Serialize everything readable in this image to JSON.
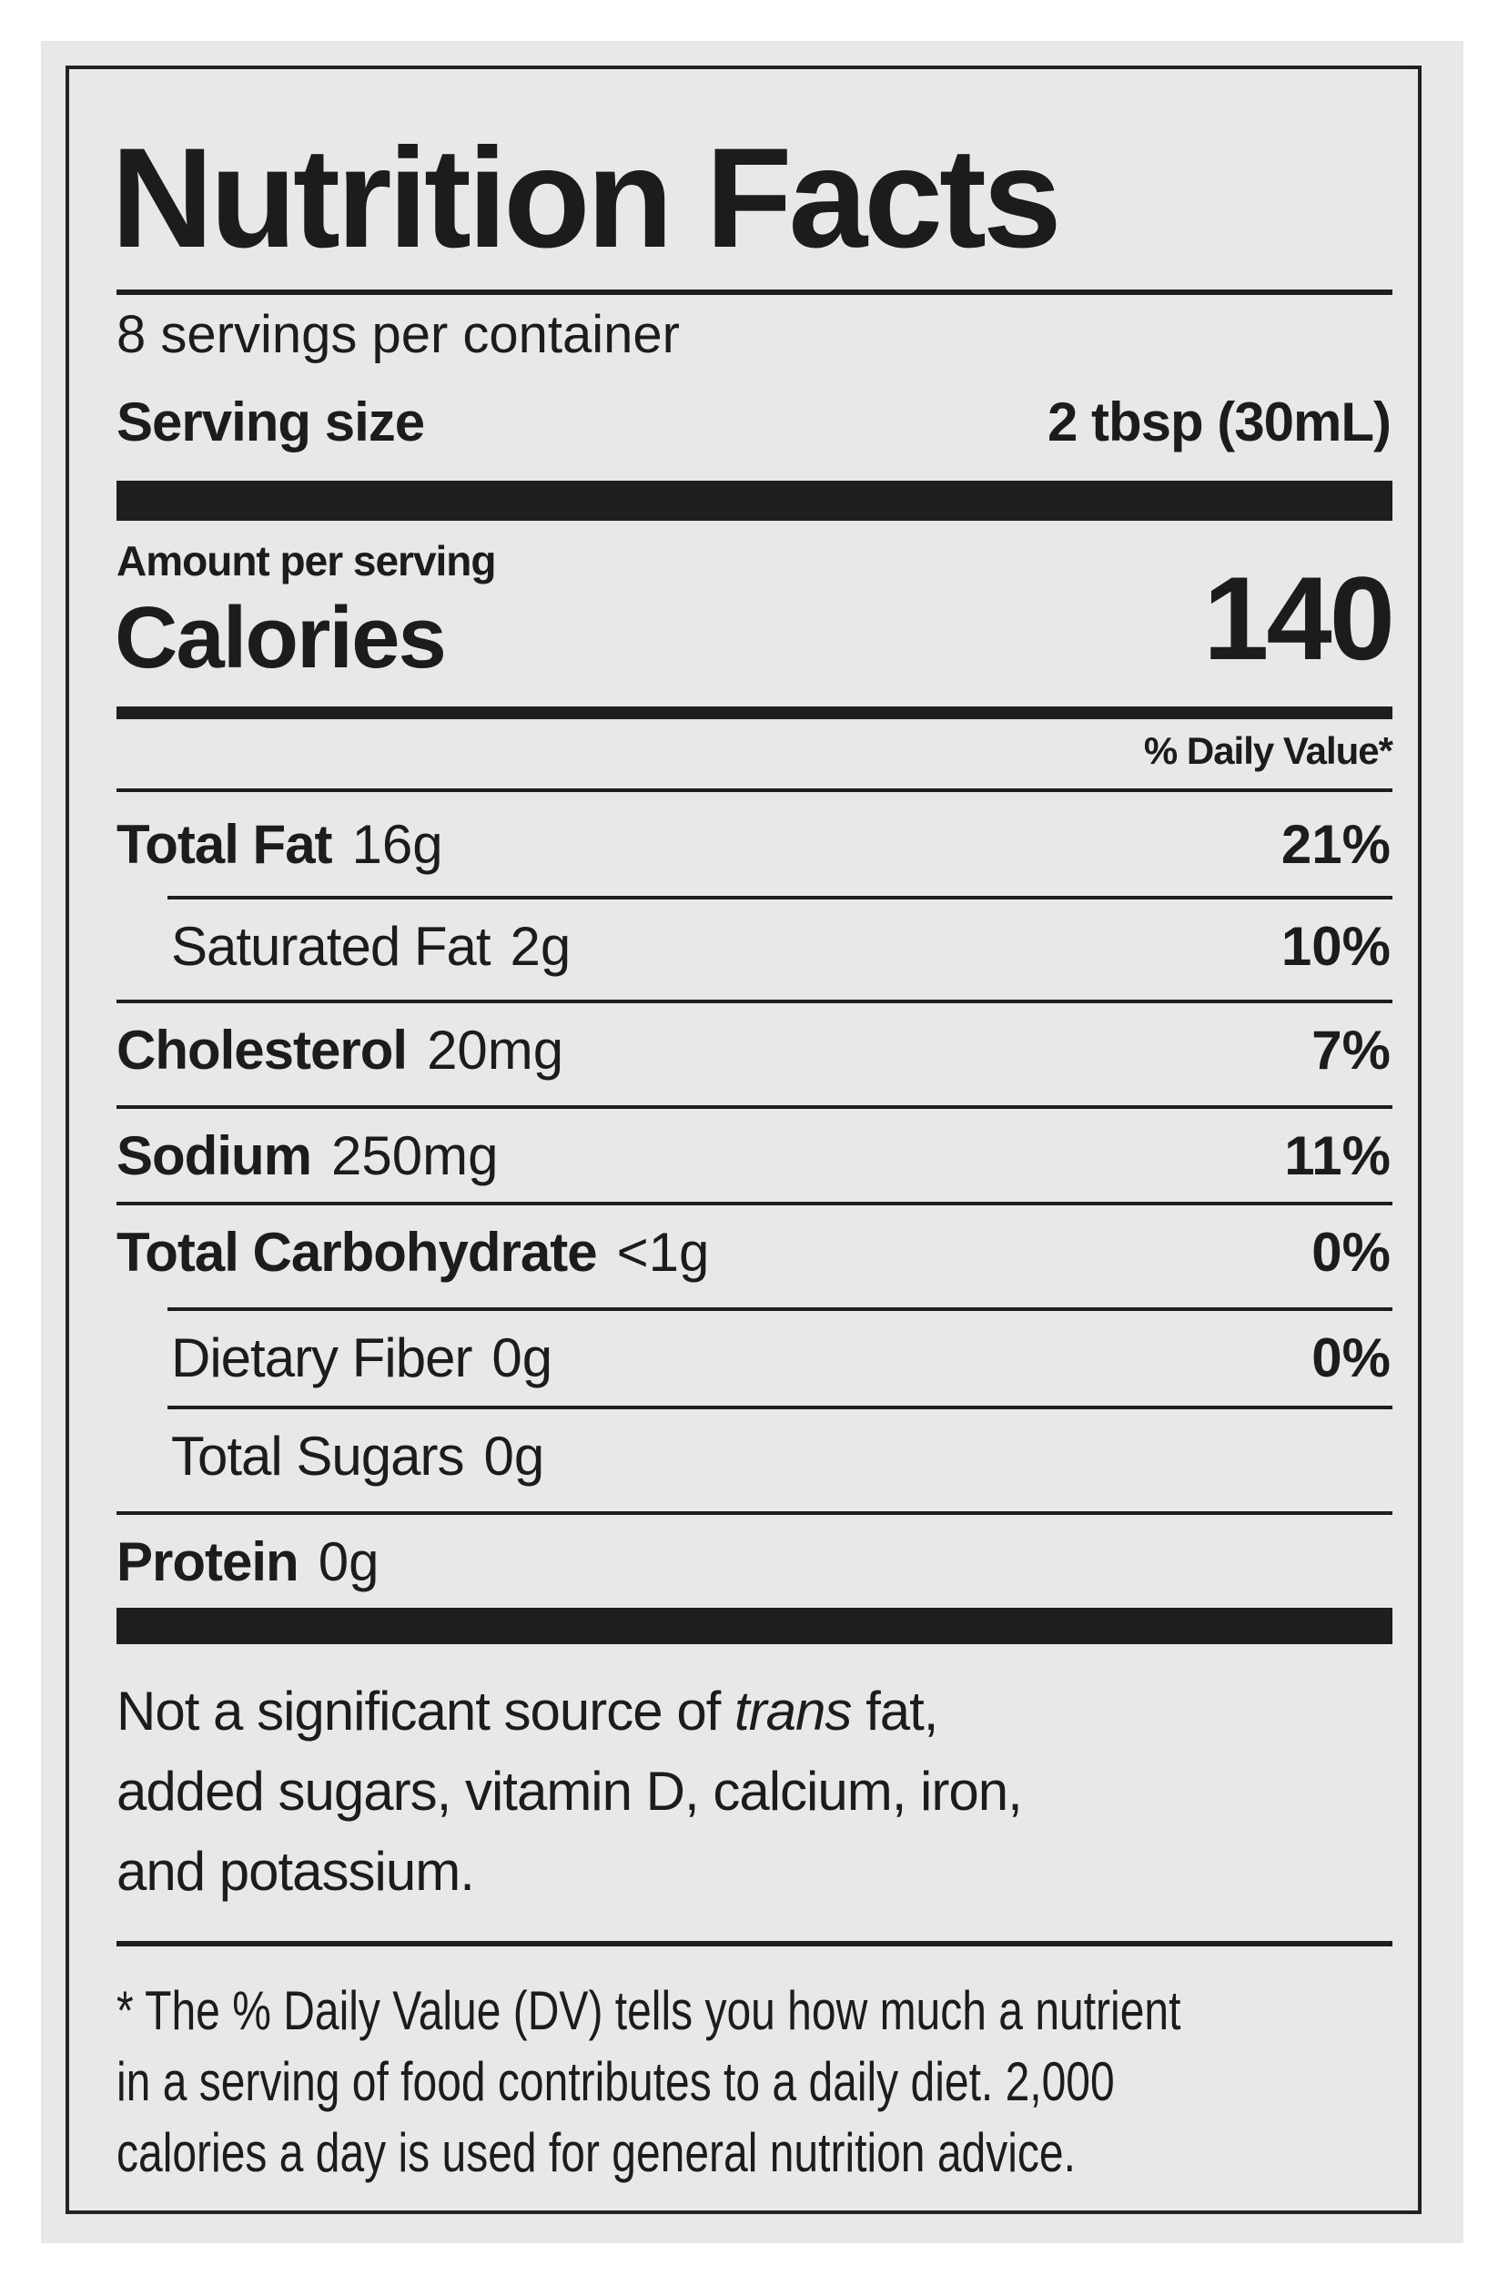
{
  "title": "Nutrition Facts",
  "servings_per_container": "8 servings per container",
  "serving_size_label": "Serving size",
  "serving_size_value": "2 tbsp (30mL)",
  "amount_per_serving": "Amount per serving",
  "calories_label": "Calories",
  "calories_value": "140",
  "daily_value_header": "% Daily Value*",
  "nutrients": [
    {
      "name": "Total Fat",
      "amount": "16g",
      "dv": "21%",
      "bold": true,
      "indent": false
    },
    {
      "name": "Saturated Fat",
      "amount": "2g",
      "dv": "10%",
      "bold": false,
      "indent": true
    },
    {
      "name": "Cholesterol",
      "amount": "20mg",
      "dv": "7%",
      "bold": true,
      "indent": false
    },
    {
      "name": "Sodium",
      "amount": "250mg",
      "dv": "11%",
      "bold": true,
      "indent": false
    },
    {
      "name": "Total Carbohydrate",
      "amount": "<1g",
      "dv": "0%",
      "bold": true,
      "indent": false
    },
    {
      "name": "Dietary Fiber",
      "amount": "0g",
      "dv": "0%",
      "bold": false,
      "indent": true
    },
    {
      "name": "Total Sugars",
      "amount": "0g",
      "dv": "",
      "bold": false,
      "indent": true
    },
    {
      "name": "Protein",
      "amount": "0g",
      "dv": "",
      "bold": true,
      "indent": false
    }
  ],
  "not_significant": {
    "pre": "Not a significant source of ",
    "italic": "trans",
    "post": " fat,",
    "line2": "added sugars, vitamin D, calcium, iron,",
    "line3": "and potassium."
  },
  "footnote": {
    "line1": "* The % Daily Value (DV) tells you how much a nutrient",
    "line2": "in a serving of food contributes to a daily diet. 2,000",
    "line3": "calories a day is used for general nutrition advice."
  }
}
